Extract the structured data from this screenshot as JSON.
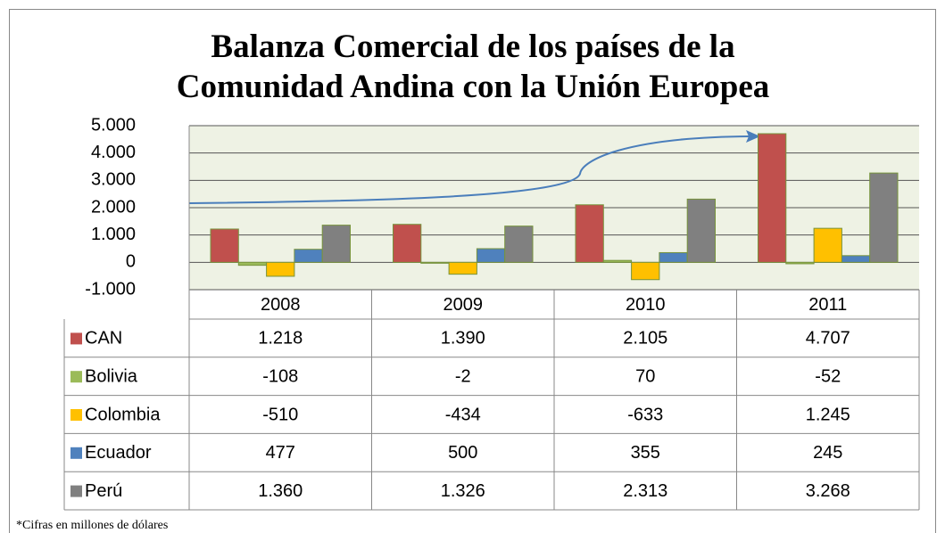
{
  "chart_data": {
    "type": "bar",
    "title": "Balanza Comercial de los países de la Comunidad Andina con la Unión Europea",
    "categories": [
      "2008",
      "2009",
      "2010",
      "2011"
    ],
    "series": [
      {
        "name": "CAN",
        "color": "#c0504d",
        "values": [
          1218,
          1390,
          2105,
          4707
        ],
        "value_labels": [
          "1.218",
          "1.390",
          "2.105",
          "4.707"
        ]
      },
      {
        "name": "Bolivia",
        "color": "#9bbb59",
        "values": [
          -108,
          -2,
          70,
          -52
        ],
        "value_labels": [
          "-108",
          "-2",
          "70",
          "-52"
        ]
      },
      {
        "name": "Colombia",
        "color": "#ffc000",
        "values": [
          -510,
          -434,
          -633,
          1245
        ],
        "value_labels": [
          "-510",
          "-434",
          "-633",
          "1.245"
        ]
      },
      {
        "name": "Ecuador",
        "color": "#4f81bd",
        "values": [
          477,
          500,
          355,
          245
        ],
        "value_labels": [
          "477",
          "500",
          "355",
          "245"
        ]
      },
      {
        "name": "Perú",
        "color": "#808080",
        "values": [
          1360,
          1326,
          2313,
          3268
        ],
        "value_labels": [
          "1.360",
          "1.326",
          "2.313",
          "3.268"
        ]
      }
    ],
    "ylim": [
      -1000,
      5000
    ],
    "yticks": [
      {
        "value": -1000,
        "label": "-1.000"
      },
      0,
      {
        "value": 1000,
        "label": "1.000"
      },
      {
        "value": 2000,
        "label": "2.000"
      },
      {
        "value": 3000,
        "label": "3.000"
      },
      {
        "value": 4000,
        "label": "4.000"
      },
      {
        "value": 5000,
        "label": "5.000"
      }
    ],
    "grid": true,
    "note": "*Cifras en millones de dólares"
  }
}
